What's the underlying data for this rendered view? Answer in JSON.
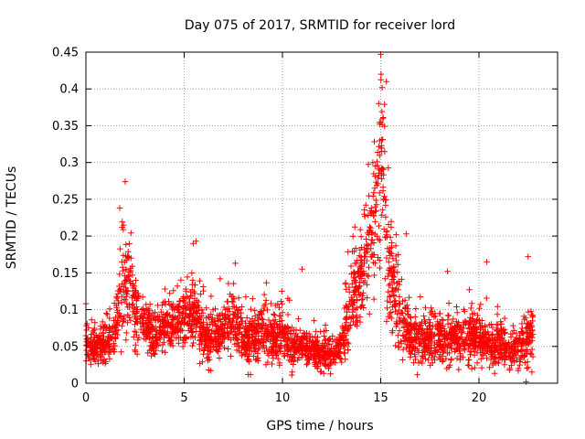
{
  "chart_data": {
    "type": "scatter",
    "title": "Day 075 of 2017, SRMTID for receiver lord",
    "xlabel": "GPS time / hours",
    "ylabel": "SRMTID / TECUs",
    "xlim": [
      0,
      24
    ],
    "ylim": [
      0,
      0.45
    ],
    "xticks": [
      0,
      5,
      10,
      15,
      20
    ],
    "xtick_labels": [
      "0",
      "5",
      "10",
      "15",
      "20"
    ],
    "yticks": [
      0,
      0.05,
      0.1,
      0.15,
      0.2,
      0.25,
      0.3,
      0.35,
      0.4,
      0.45
    ],
    "ytick_labels": [
      "0",
      "0.05",
      "0.1",
      "0.15",
      "0.2",
      "0.25",
      "0.3",
      "0.35",
      "0.4",
      "0.45"
    ],
    "grid": true,
    "marker": "+",
    "color": "#ff0000",
    "series": [
      {
        "name": "SRMTID",
        "envelope": [
          [
            0.0,
            0.05,
            0.03
          ],
          [
            0.5,
            0.05,
            0.025
          ],
          [
            1.0,
            0.05,
            0.025
          ],
          [
            1.5,
            0.07,
            0.03
          ],
          [
            1.8,
            0.12,
            0.06
          ],
          [
            2.1,
            0.14,
            0.07
          ],
          [
            2.5,
            0.1,
            0.04
          ],
          [
            3.0,
            0.08,
            0.03
          ],
          [
            3.5,
            0.07,
            0.03
          ],
          [
            4.0,
            0.08,
            0.03
          ],
          [
            4.5,
            0.08,
            0.03
          ],
          [
            5.0,
            0.09,
            0.035
          ],
          [
            5.5,
            0.1,
            0.045
          ],
          [
            6.0,
            0.06,
            0.03
          ],
          [
            6.5,
            0.06,
            0.03
          ],
          [
            7.0,
            0.07,
            0.03
          ],
          [
            7.5,
            0.09,
            0.045
          ],
          [
            8.0,
            0.06,
            0.03
          ],
          [
            8.5,
            0.06,
            0.03
          ],
          [
            9.0,
            0.07,
            0.03
          ],
          [
            9.5,
            0.06,
            0.03
          ],
          [
            10.0,
            0.07,
            0.035
          ],
          [
            10.5,
            0.05,
            0.025
          ],
          [
            11.0,
            0.05,
            0.02
          ],
          [
            11.5,
            0.045,
            0.02
          ],
          [
            12.0,
            0.04,
            0.02
          ],
          [
            12.5,
            0.04,
            0.02
          ],
          [
            13.0,
            0.05,
            0.02
          ],
          [
            13.3,
            0.09,
            0.04
          ],
          [
            13.7,
            0.12,
            0.05
          ],
          [
            14.0,
            0.14,
            0.06
          ],
          [
            14.3,
            0.16,
            0.07
          ],
          [
            14.6,
            0.2,
            0.09
          ],
          [
            14.9,
            0.28,
            0.1
          ],
          [
            15.0,
            0.31,
            0.12
          ],
          [
            15.2,
            0.24,
            0.1
          ],
          [
            15.5,
            0.15,
            0.07
          ],
          [
            16.0,
            0.1,
            0.05
          ],
          [
            16.5,
            0.06,
            0.03
          ],
          [
            17.0,
            0.06,
            0.03
          ],
          [
            17.5,
            0.06,
            0.03
          ],
          [
            18.0,
            0.06,
            0.03
          ],
          [
            18.5,
            0.06,
            0.03
          ],
          [
            19.0,
            0.06,
            0.03
          ],
          [
            19.5,
            0.065,
            0.03
          ],
          [
            20.0,
            0.06,
            0.03
          ],
          [
            20.5,
            0.05,
            0.025
          ],
          [
            21.0,
            0.05,
            0.03
          ],
          [
            21.5,
            0.045,
            0.025
          ],
          [
            22.0,
            0.045,
            0.025
          ],
          [
            22.5,
            0.06,
            0.035
          ],
          [
            22.75,
            0.06,
            0.03
          ]
        ],
        "highlights": [
          [
            2.0,
            0.274
          ],
          [
            15.0,
            0.447
          ],
          [
            15.02,
            0.42
          ],
          [
            14.9,
            0.38
          ],
          [
            14.95,
            0.352
          ],
          [
            14.6,
            0.3
          ],
          [
            14.7,
            0.265
          ],
          [
            5.6,
            0.193
          ],
          [
            7.6,
            0.163
          ],
          [
            11.0,
            0.155
          ],
          [
            16.3,
            0.203
          ],
          [
            18.4,
            0.152
          ],
          [
            20.4,
            0.165
          ],
          [
            22.5,
            0.172
          ],
          [
            22.4,
            0.002
          ],
          [
            0.0,
            0.108
          ]
        ],
        "point_count": 3000
      }
    ]
  }
}
